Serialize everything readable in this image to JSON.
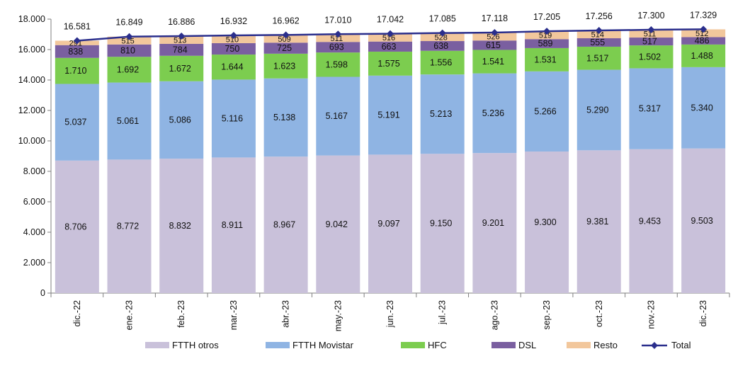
{
  "chart_data": {
    "type": "bar",
    "stacked": true,
    "categories": [
      "dic.-22",
      "ene.-23",
      "feb.-23",
      "mar.-23",
      "abr.-23",
      "may.-23",
      "jun.-23",
      "jul.-23",
      "ago.-23",
      "sep.-23",
      "oct.-23",
      "nov.-23",
      "dic.-23"
    ],
    "ylim": [
      0,
      18000
    ],
    "yticks": [
      "0",
      "2.000",
      "4.000",
      "6.000",
      "8.000",
      "10.000",
      "12.000",
      "14.000",
      "16.000",
      "18.000"
    ],
    "grid": false,
    "legend_position": "bottom",
    "series": [
      {
        "name": "FTTH otros",
        "color": "#c9c1da",
        "values": [
          8706,
          8772,
          8832,
          8911,
          8967,
          9042,
          9097,
          9150,
          9201,
          9300,
          9381,
          9453,
          9503
        ],
        "labels": [
          "8.706",
          "8.772",
          "8.832",
          "8.911",
          "8.967",
          "9.042",
          "9.097",
          "9.150",
          "9.201",
          "9.300",
          "9.381",
          "9.453",
          "9.503"
        ]
      },
      {
        "name": "FTTH Movistar",
        "color": "#8fb4e3",
        "values": [
          5037,
          5061,
          5086,
          5116,
          5138,
          5167,
          5191,
          5213,
          5236,
          5266,
          5290,
          5317,
          5340
        ],
        "labels": [
          "5.037",
          "5.061",
          "5.086",
          "5.116",
          "5.138",
          "5.167",
          "5.191",
          "5.213",
          "5.236",
          "5.266",
          "5.290",
          "5.317",
          "5.340"
        ]
      },
      {
        "name": "HFC",
        "color": "#7ccd4f",
        "values": [
          1710,
          1692,
          1672,
          1644,
          1623,
          1598,
          1575,
          1556,
          1541,
          1531,
          1517,
          1502,
          1488
        ],
        "labels": [
          "1.710",
          "1.692",
          "1.672",
          "1.644",
          "1.623",
          "1.598",
          "1.575",
          "1.556",
          "1.541",
          "1.531",
          "1.517",
          "1.502",
          "1.488"
        ]
      },
      {
        "name": "DSL",
        "color": "#7a5fa0",
        "values": [
          838,
          810,
          784,
          750,
          725,
          693,
          663,
          638,
          615,
          589,
          555,
          517,
          486
        ],
        "labels": [
          "838",
          "810",
          "784",
          "750",
          "725",
          "693",
          "663",
          "638",
          "615",
          "589",
          "555",
          "517",
          "486"
        ]
      },
      {
        "name": "Resto",
        "color": "#f2c79c",
        "values": [
          291,
          515,
          513,
          510,
          509,
          511,
          516,
          528,
          526,
          519,
          514,
          511,
          512
        ],
        "labels": [
          "291",
          "515",
          "513",
          "510",
          "509",
          "511",
          "516",
          "528",
          "526",
          "519",
          "514",
          "511",
          "512"
        ]
      }
    ],
    "total": {
      "name": "Total",
      "color": "#2a2e8c",
      "values": [
        16581,
        16849,
        16886,
        16932,
        16962,
        17010,
        17042,
        17085,
        17118,
        17205,
        17256,
        17300,
        17329
      ],
      "labels": [
        "16.581",
        "16.849",
        "16.886",
        "16.932",
        "16.962",
        "17.010",
        "17.042",
        "17.085",
        "17.118",
        "17.205",
        "17.256",
        "17.300",
        "17.329"
      ]
    }
  }
}
